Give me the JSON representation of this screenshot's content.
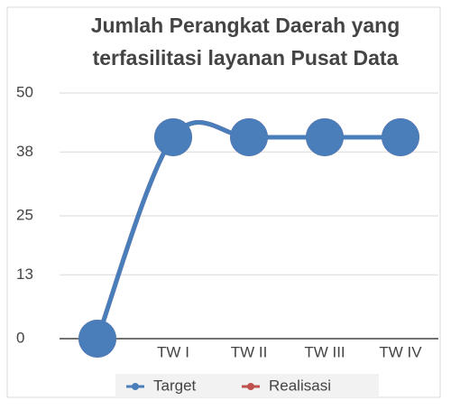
{
  "chart_data": {
    "type": "line",
    "title": [
      "Jumlah Perangkat Daerah yang",
      "terfasilitasi layanan Pusat Data"
    ],
    "categories": [
      null,
      "TW I",
      "TW II",
      "TW III",
      "TW IV"
    ],
    "series": [
      {
        "name": "Target",
        "color": "#4a7ebb",
        "values": [
          0,
          41,
          41,
          41,
          41
        ]
      },
      {
        "name": "Realisasi",
        "color": "#c0504d",
        "values": [
          0,
          41,
          41,
          41,
          41
        ]
      }
    ],
    "ylim": [
      0,
      50
    ],
    "yticks": [
      0,
      13,
      25,
      38,
      50
    ],
    "grid": true,
    "smooth": true,
    "legend": "bottom"
  }
}
